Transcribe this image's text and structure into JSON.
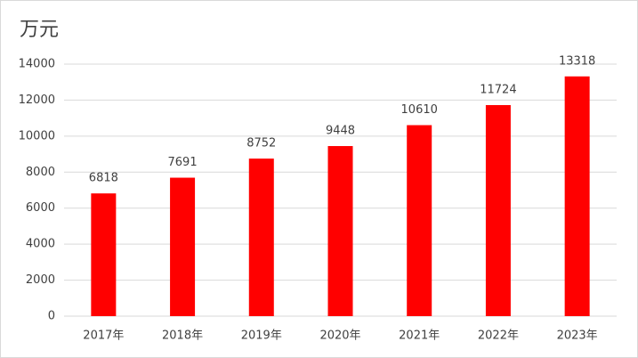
{
  "chart_data": {
    "type": "bar",
    "title": "万元",
    "categories": [
      "2017年",
      "2018年",
      "2019年",
      "2020年",
      "2021年",
      "2022年",
      "2023年"
    ],
    "values": [
      6818,
      7691,
      8752,
      9448,
      10610,
      11724,
      13318
    ],
    "color": "#ff0000",
    "ylim": [
      0,
      14000
    ],
    "yticks": [
      0,
      2000,
      4000,
      6000,
      8000,
      10000,
      12000,
      14000
    ],
    "grid": true
  }
}
